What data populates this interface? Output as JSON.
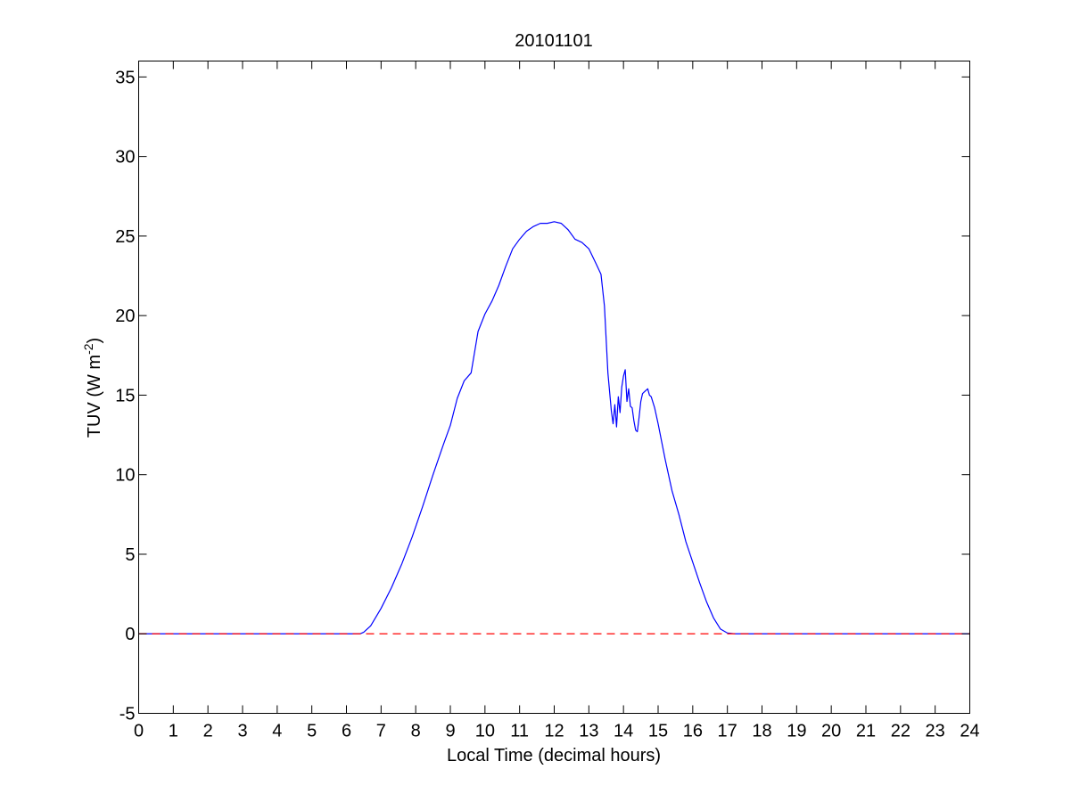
{
  "chart_data": {
    "type": "line",
    "title": "20101101",
    "xlabel": "Local Time (decimal hours)",
    "ylabel": "TUV (W m",
    "ylabel_sup": "-2",
    "ylabel_close": ")",
    "xlim": [
      0,
      24
    ],
    "ylim": [
      -5,
      36
    ],
    "xticks": [
      0,
      1,
      2,
      3,
      4,
      5,
      6,
      7,
      8,
      9,
      10,
      11,
      12,
      13,
      14,
      15,
      16,
      17,
      18,
      19,
      20,
      21,
      22,
      23,
      24
    ],
    "yticks": [
      -5,
      0,
      5,
      10,
      15,
      20,
      25,
      30,
      35
    ],
    "grid": false,
    "series": [
      {
        "style": "solid",
        "color": "#0000ff",
        "x": [
          0,
          6.4,
          6.5,
          6.7,
          7.0,
          7.3,
          7.6,
          7.9,
          8.2,
          8.5,
          8.8,
          9.0,
          9.2,
          9.4,
          9.6,
          9.8,
          10.0,
          10.2,
          10.4,
          10.6,
          10.8,
          11.0,
          11.2,
          11.4,
          11.6,
          11.8,
          12.0,
          12.2,
          12.4,
          12.6,
          12.8,
          13.0,
          13.2,
          13.35,
          13.45,
          13.55,
          13.65,
          13.7,
          13.75,
          13.8,
          13.85,
          13.9,
          13.95,
          14.0,
          14.05,
          14.1,
          14.15,
          14.2,
          14.25,
          14.3,
          14.35,
          14.4,
          14.45,
          14.5,
          14.55,
          14.6,
          14.65,
          14.7,
          14.75,
          14.8,
          14.9,
          15.0,
          15.2,
          15.4,
          15.6,
          15.8,
          16.0,
          16.2,
          16.4,
          16.6,
          16.8,
          17.0,
          17.2,
          17.4,
          17.6,
          24
        ],
        "y": [
          0,
          0,
          0.1,
          0.5,
          1.6,
          2.9,
          4.4,
          6.1,
          8.0,
          10.0,
          11.9,
          13.1,
          14.8,
          15.9,
          16.4,
          19.0,
          20.1,
          20.9,
          21.9,
          23.1,
          24.2,
          24.8,
          25.3,
          25.6,
          25.8,
          25.8,
          25.9,
          25.8,
          25.4,
          24.8,
          24.6,
          24.2,
          23.3,
          22.6,
          20.6,
          16.4,
          14.0,
          13.2,
          14.4,
          13.0,
          14.9,
          13.9,
          15.5,
          16.2,
          16.6,
          14.6,
          15.4,
          14.3,
          14.2,
          13.4,
          12.8,
          12.7,
          13.6,
          14.6,
          15.1,
          15.2,
          15.3,
          15.4,
          15.0,
          14.9,
          14.2,
          13.2,
          11.0,
          9.0,
          7.5,
          5.8,
          4.5,
          3.2,
          2.0,
          1.0,
          0.3,
          0.05,
          0,
          0,
          0,
          0
        ]
      },
      {
        "style": "dashed",
        "color": "#ff0000",
        "x": [
          0,
          24
        ],
        "y": [
          0,
          0
        ]
      }
    ]
  }
}
